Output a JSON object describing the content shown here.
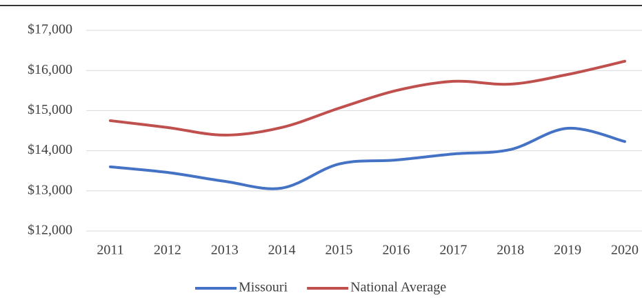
{
  "chart_data": {
    "type": "line",
    "categories": [
      "2011",
      "2012",
      "2013",
      "2014",
      "2015",
      "2016",
      "2017",
      "2018",
      "2019",
      "2020"
    ],
    "series": [
      {
        "name": "Missouri",
        "color": "#4472c4",
        "values": [
          13600,
          13460,
          13240,
          13070,
          13670,
          13770,
          13920,
          14030,
          14560,
          14230
        ]
      },
      {
        "name": "National Average",
        "color": "#c0504d",
        "values": [
          14750,
          14580,
          14390,
          14580,
          15060,
          15500,
          15730,
          15660,
          15900,
          16230
        ]
      }
    ],
    "ylim": [
      12000,
      17000
    ],
    "yticks": [
      {
        "value": 12000,
        "label": "$12,000"
      },
      {
        "value": 13000,
        "label": "$13,000"
      },
      {
        "value": 14000,
        "label": "$14,000"
      },
      {
        "value": 15000,
        "label": "$15,000"
      },
      {
        "value": 16000,
        "label": "$16,000"
      },
      {
        "value": 17000,
        "label": "$17,000"
      }
    ],
    "grid": true,
    "legend": "bottom"
  }
}
